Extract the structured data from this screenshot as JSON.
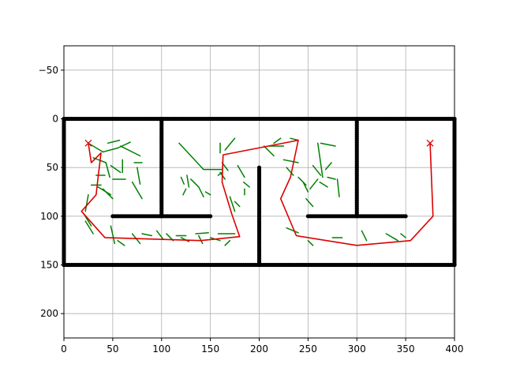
{
  "chart_data": {
    "type": "scatter",
    "title": "",
    "xlabel": "",
    "ylabel": "",
    "xlim": [
      0,
      400
    ],
    "ylim": [
      225,
      -75
    ],
    "y_inverted": true,
    "grid": true,
    "x_ticks": [
      0,
      50,
      100,
      150,
      200,
      250,
      300,
      350,
      400
    ],
    "y_ticks": [
      -50,
      0,
      50,
      100,
      150,
      200
    ],
    "x_tick_labels": [
      "0",
      "50",
      "100",
      "150",
      "200",
      "250",
      "300",
      "350",
      "400"
    ],
    "y_tick_labels": [
      "−50",
      "0",
      "50",
      "100",
      "150",
      "200"
    ],
    "colors": {
      "obstacles": "#000000",
      "tree": "#008000",
      "path": "#dd0000",
      "markers": "#dd0000",
      "grid": "#b0b0b0"
    },
    "obstacles": {
      "segments": [
        [
          [
            0,
            0
          ],
          [
            400,
            0
          ]
        ],
        [
          [
            0,
            150
          ],
          [
            400,
            150
          ]
        ],
        [
          [
            0,
            0
          ],
          [
            0,
            150
          ]
        ],
        [
          [
            400,
            0
          ],
          [
            400,
            150
          ]
        ],
        [
          [
            100,
            0
          ],
          [
            100,
            100
          ]
        ],
        [
          [
            300,
            0
          ],
          [
            300,
            100
          ]
        ],
        [
          [
            50,
            100
          ],
          [
            150,
            100
          ]
        ],
        [
          [
            250,
            100
          ],
          [
            350,
            100
          ]
        ],
        [
          [
            200,
            50
          ],
          [
            200,
            150
          ]
        ]
      ]
    },
    "start_goal_markers": [
      {
        "x": 25,
        "y": 25
      },
      {
        "x": 375,
        "y": 25
      }
    ],
    "path": [
      [
        25,
        25
      ],
      [
        28,
        45
      ],
      [
        38,
        35
      ],
      [
        35,
        60
      ],
      [
        33,
        78
      ],
      [
        18,
        95
      ],
      [
        42,
        122
      ],
      [
        75,
        123
      ],
      [
        140,
        125
      ],
      [
        180,
        121
      ],
      [
        172,
        98
      ],
      [
        162,
        65
      ],
      [
        163,
        37
      ],
      [
        240,
        22
      ],
      [
        232,
        60
      ],
      [
        222,
        82
      ],
      [
        238,
        120
      ],
      [
        300,
        130
      ],
      [
        355,
        125
      ],
      [
        378,
        100
      ],
      [
        375,
        25
      ]
    ],
    "tree_edges": [
      [
        [
          25,
          25
        ],
        [
          40,
          34
        ]
      ],
      [
        [
          40,
          34
        ],
        [
          55,
          30
        ]
      ],
      [
        [
          55,
          30
        ],
        [
          68,
          24
        ]
      ],
      [
        [
          45,
          25
        ],
        [
          57,
          22
        ]
      ],
      [
        [
          58,
          28
        ],
        [
          78,
          38
        ]
      ],
      [
        [
          30,
          40
        ],
        [
          43,
          45
        ]
      ],
      [
        [
          43,
          45
        ],
        [
          47,
          60
        ]
      ],
      [
        [
          48,
          48
        ],
        [
          58,
          55
        ]
      ],
      [
        [
          60,
          42
        ],
        [
          60,
          55
        ]
      ],
      [
        [
          72,
          45
        ],
        [
          80,
          45
        ]
      ],
      [
        [
          75,
          50
        ],
        [
          78,
          67
        ]
      ],
      [
        [
          70,
          65
        ],
        [
          80,
          82
        ]
      ],
      [
        [
          50,
          62
        ],
        [
          63,
          62
        ]
      ],
      [
        [
          40,
          72
        ],
        [
          50,
          82
        ]
      ],
      [
        [
          25,
          78
        ],
        [
          22,
          95
        ]
      ],
      [
        [
          20,
          97
        ],
        [
          28,
          110
        ]
      ],
      [
        [
          22,
          105
        ],
        [
          30,
          118
        ]
      ],
      [
        [
          35,
          70
        ],
        [
          48,
          78
        ]
      ],
      [
        [
          33,
          58
        ],
        [
          42,
          58
        ]
      ],
      [
        [
          28,
          68
        ],
        [
          38,
          68
        ]
      ],
      [
        [
          48,
          110
        ],
        [
          52,
          128
        ]
      ],
      [
        [
          55,
          125
        ],
        [
          62,
          130
        ]
      ],
      [
        [
          70,
          118
        ],
        [
          78,
          128
        ]
      ],
      [
        [
          80,
          118
        ],
        [
          90,
          120
        ]
      ],
      [
        [
          95,
          115
        ],
        [
          102,
          124
        ]
      ],
      [
        [
          105,
          118
        ],
        [
          112,
          125
        ]
      ],
      [
        [
          115,
          120
        ],
        [
          125,
          120
        ]
      ],
      [
        [
          120,
          122
        ],
        [
          128,
          126
        ]
      ],
      [
        [
          138,
          120
        ],
        [
          142,
          128
        ]
      ],
      [
        [
          135,
          118
        ],
        [
          148,
          117
        ]
      ],
      [
        [
          150,
          122
        ],
        [
          160,
          125
        ]
      ],
      [
        [
          158,
          118
        ],
        [
          175,
          118
        ]
      ],
      [
        [
          165,
          130
        ],
        [
          170,
          125
        ]
      ],
      [
        [
          118,
          25
        ],
        [
          143,
          52
        ]
      ],
      [
        [
          143,
          52
        ],
        [
          162,
          52
        ]
      ],
      [
        [
          120,
          60
        ],
        [
          123,
          67
        ]
      ],
      [
        [
          126,
          58
        ],
        [
          128,
          70
        ]
      ],
      [
        [
          125,
          72
        ],
        [
          122,
          78
        ]
      ],
      [
        [
          130,
          62
        ],
        [
          138,
          70
        ]
      ],
      [
        [
          138,
          70
        ],
        [
          143,
          80
        ]
      ],
      [
        [
          145,
          75
        ],
        [
          150,
          78
        ]
      ],
      [
        [
          158,
          58
        ],
        [
          162,
          55
        ]
      ],
      [
        [
          162,
          45
        ],
        [
          168,
          53
        ]
      ],
      [
        [
          160,
          55
        ],
        [
          165,
          62
        ]
      ],
      [
        [
          170,
          80
        ],
        [
          175,
          95
        ]
      ],
      [
        [
          175,
          85
        ],
        [
          180,
          90
        ]
      ],
      [
        [
          160,
          25
        ],
        [
          160,
          35
        ]
      ],
      [
        [
          165,
          32
        ],
        [
          175,
          20
        ]
      ],
      [
        [
          178,
          48
        ],
        [
          185,
          60
        ]
      ],
      [
        [
          184,
          65
        ],
        [
          190,
          70
        ]
      ],
      [
        [
          185,
          72
        ],
        [
          185,
          78
        ]
      ],
      [
        [
          205,
          28
        ],
        [
          215,
          38
        ]
      ],
      [
        [
          210,
          28
        ],
        [
          225,
          28
        ]
      ],
      [
        [
          215,
          25
        ],
        [
          222,
          20
        ]
      ],
      [
        [
          232,
          20
        ],
        [
          240,
          22
        ]
      ],
      [
        [
          225,
          42
        ],
        [
          240,
          45
        ]
      ],
      [
        [
          228,
          50
        ],
        [
          235,
          58
        ]
      ],
      [
        [
          240,
          60
        ],
        [
          248,
          68
        ]
      ],
      [
        [
          245,
          65
        ],
        [
          250,
          75
        ]
      ],
      [
        [
          248,
          82
        ],
        [
          255,
          90
        ]
      ],
      [
        [
          252,
          72
        ],
        [
          260,
          62
        ]
      ],
      [
        [
          255,
          48
        ],
        [
          263,
          58
        ]
      ],
      [
        [
          263,
          25
        ],
        [
          278,
          28
        ]
      ],
      [
        [
          268,
          52
        ],
        [
          274,
          45
        ]
      ],
      [
        [
          270,
          60
        ],
        [
          278,
          62
        ]
      ],
      [
        [
          280,
          62
        ],
        [
          282,
          80
        ]
      ],
      [
        [
          262,
          65
        ],
        [
          270,
          70
        ]
      ],
      [
        [
          228,
          112
        ],
        [
          240,
          117
        ]
      ],
      [
        [
          250,
          125
        ],
        [
          255,
          130
        ]
      ],
      [
        [
          275,
          122
        ],
        [
          285,
          122
        ]
      ],
      [
        [
          305,
          115
        ],
        [
          310,
          125
        ]
      ],
      [
        [
          330,
          118
        ],
        [
          342,
          125
        ]
      ],
      [
        [
          345,
          118
        ],
        [
          350,
          122
        ]
      ],
      [
        [
          260,
          25
        ],
        [
          265,
          60
        ]
      ]
    ]
  }
}
